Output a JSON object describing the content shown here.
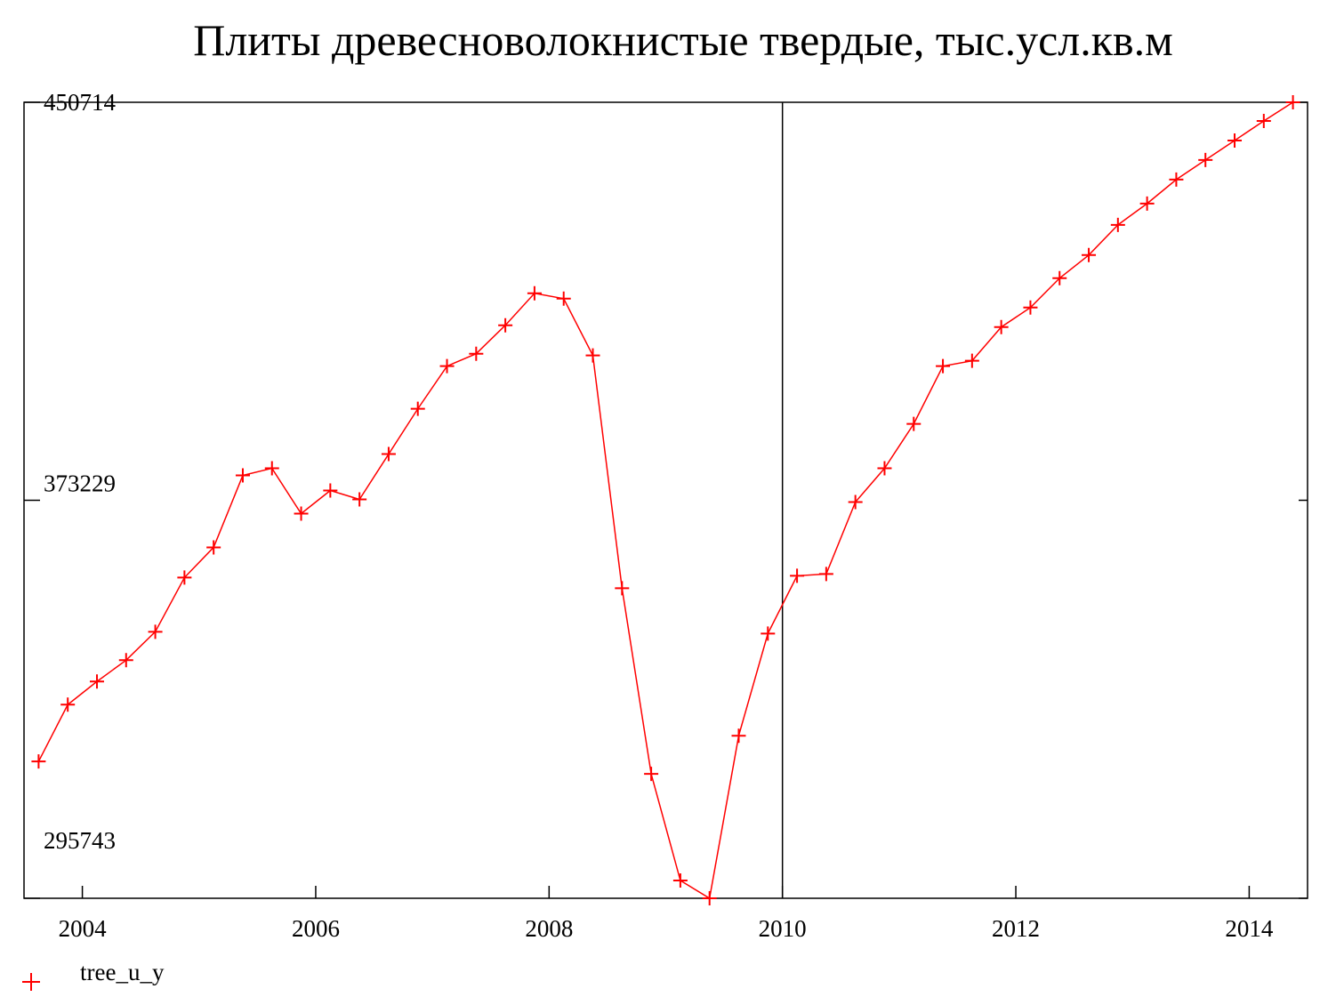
{
  "chart_data": {
    "type": "line",
    "title": "Плиты древесноволокнистые твердые, тыс.усл.кв.м",
    "x": [
      2003.625,
      2003.875,
      2004.125,
      2004.375,
      2004.625,
      2004.875,
      2005.125,
      2005.375,
      2005.625,
      2005.875,
      2006.125,
      2006.375,
      2006.625,
      2006.875,
      2007.125,
      2007.375,
      2007.625,
      2007.875,
      2008.125,
      2008.375,
      2008.625,
      2008.875,
      2009.125,
      2009.375,
      2009.625,
      2009.875,
      2010.125,
      2010.375,
      2010.625,
      2010.875,
      2011.125,
      2011.375,
      2011.625,
      2011.875,
      2012.125,
      2012.375,
      2012.625,
      2012.875,
      2013.125,
      2013.375,
      2013.625,
      2013.875,
      2014.125,
      2014.375
    ],
    "series": [
      {
        "name": "tree_u_y",
        "color": "#ff0000",
        "values": [
          322378,
          333447,
          337944,
          342095,
          347630,
          358180,
          364061,
          378071,
          379454,
          370634,
          375130,
          373401,
          382222,
          391043,
          399345,
          401766,
          407301,
          413528,
          412490,
          401420,
          356105,
          319956,
          299201,
          295743,
          327394,
          347284,
          358526,
          358872,
          372882,
          379454,
          388102,
          399345,
          400383,
          406955,
          410760,
          416468,
          420965,
          426846,
          430997,
          435666,
          439472,
          443277,
          447082,
          450714
        ]
      }
    ],
    "xlim": [
      2003.5,
      2014.5
    ],
    "xticks": [
      2004,
      2006,
      2008,
      2010,
      2012,
      2014
    ],
    "ylim": [
      295743,
      450714
    ],
    "yticks": [
      295743,
      373229,
      450714
    ],
    "vline": 2010,
    "marker": "+",
    "legend": "bottom-left"
  }
}
